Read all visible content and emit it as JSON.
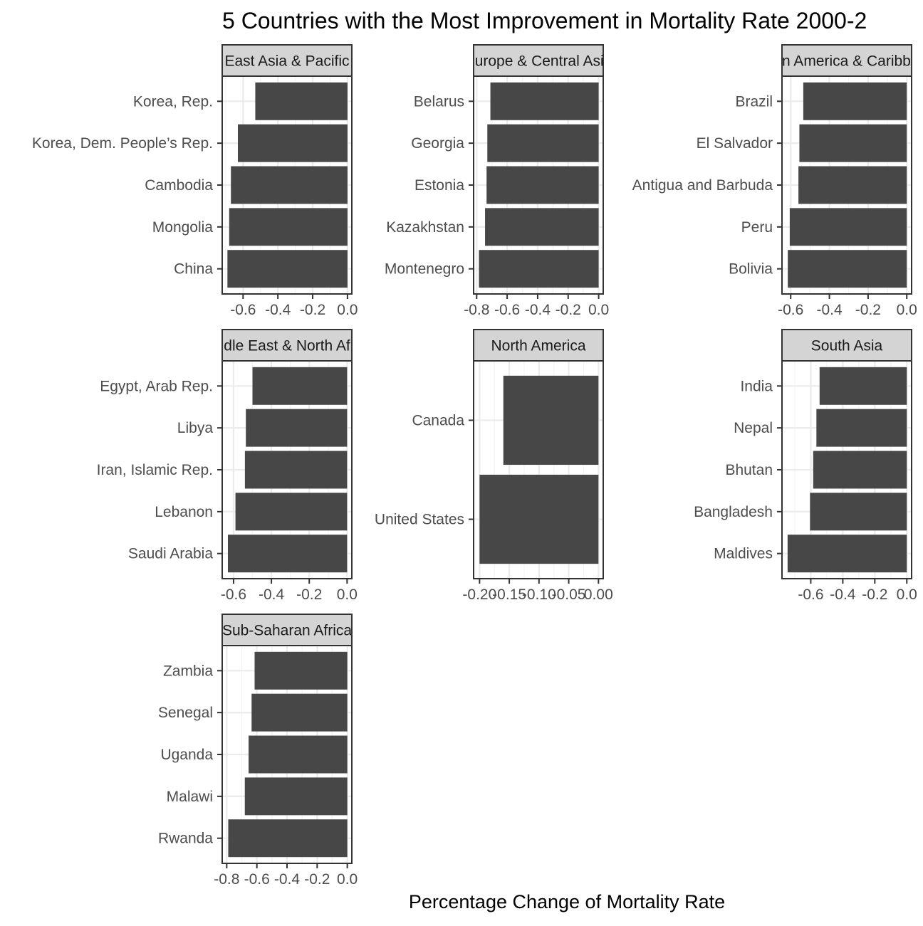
{
  "title": "5 Countries with the Most Improvement in Mortality Rate 2000-2",
  "xlabel": "Percentage Change of Mortality Rate",
  "colors": {
    "bar": "#474747",
    "strip_fill": "#d4d4d4",
    "strip_border": "#333333",
    "panel_border": "#333333",
    "grid_major": "#ebebeb",
    "grid_minor": "#f4f4f4",
    "tick_text": "#4d4d4d",
    "text": "#000000"
  },
  "chart_data": [
    {
      "type": "bar",
      "orientation": "horizontal",
      "strip_label": "East Asia & Pacific",
      "categories": [
        "Korea, Rep.",
        "Korea, Dem. People’s Rep.",
        "Cambodia",
        "Mongolia",
        "China"
      ],
      "values": [
        -0.53,
        -0.63,
        -0.67,
        -0.68,
        -0.69
      ],
      "xlim": [
        -0.72,
        0.025
      ],
      "ticks": [
        -0.6,
        -0.4,
        -0.2,
        0.0
      ],
      "tick_labels": [
        "-0.6",
        "-0.4",
        "-0.2",
        "0.0"
      ]
    },
    {
      "type": "bar",
      "orientation": "horizontal",
      "strip_label": "Europe & Central Asia",
      "categories": [
        "Belarus",
        "Georgia",
        "Estonia",
        "Kazakhstan",
        "Montenegro"
      ],
      "values": [
        -0.71,
        -0.73,
        -0.735,
        -0.745,
        -0.785
      ],
      "xlim": [
        -0.82,
        0.03
      ],
      "ticks": [
        -0.8,
        -0.6,
        -0.4,
        -0.2,
        0.0
      ],
      "tick_labels": [
        "-0.8",
        "-0.6",
        "-0.4",
        "-0.2",
        "0.0"
      ]
    },
    {
      "type": "bar",
      "orientation": "horizontal",
      "strip_label": "Latin America & Caribbean",
      "categories": [
        "Brazil",
        "El Salvador",
        "Antigua and Barbuda",
        "Peru",
        "Bolivia"
      ],
      "values": [
        -0.535,
        -0.555,
        -0.56,
        -0.605,
        -0.615
      ],
      "xlim": [
        -0.645,
        0.025
      ],
      "ticks": [
        -0.6,
        -0.4,
        -0.2,
        0.0
      ],
      "tick_labels": [
        "-0.6",
        "-0.4",
        "-0.2",
        "0.0"
      ]
    },
    {
      "type": "bar",
      "orientation": "horizontal",
      "strip_label": "Middle East & North Africa",
      "categories": [
        "Egypt, Arab Rep.",
        "Libya",
        "Iran, Islamic Rep.",
        "Lebanon",
        "Saudi Arabia"
      ],
      "values": [
        -0.5,
        -0.535,
        -0.54,
        -0.59,
        -0.63
      ],
      "xlim": [
        -0.66,
        0.025
      ],
      "ticks": [
        -0.6,
        -0.4,
        -0.2,
        0.0
      ],
      "tick_labels": [
        "-0.6",
        "-0.4",
        "-0.2",
        "0.0"
      ]
    },
    {
      "type": "bar",
      "orientation": "horizontal",
      "strip_label": "North America",
      "categories": [
        "Canada",
        "United States"
      ],
      "values": [
        -0.16,
        -0.2
      ],
      "xlim": [
        -0.21,
        0.008
      ],
      "ticks": [
        -0.2,
        -0.15,
        -0.1,
        -0.05,
        0.0
      ],
      "tick_labels": [
        "-0.20",
        "-0.15",
        "-0.10",
        "-0.05",
        "0.00"
      ]
    },
    {
      "type": "bar",
      "orientation": "horizontal",
      "strip_label": "South Asia",
      "categories": [
        "India",
        "Nepal",
        "Bhutan",
        "Bangladesh",
        "Maldives"
      ],
      "values": [
        -0.545,
        -0.565,
        -0.585,
        -0.605,
        -0.745
      ],
      "xlim": [
        -0.78,
        0.03
      ],
      "ticks": [
        -0.6,
        -0.4,
        -0.2,
        0.0
      ],
      "tick_labels": [
        "-0.6",
        "-0.4",
        "-0.2",
        "0.0"
      ]
    },
    {
      "type": "bar",
      "orientation": "horizontal",
      "strip_label": "Sub-Saharan Africa",
      "categories": [
        "Zambia",
        "Senegal",
        "Uganda",
        "Malawi",
        "Rwanda"
      ],
      "values": [
        -0.615,
        -0.635,
        -0.655,
        -0.68,
        -0.79
      ],
      "xlim": [
        -0.83,
        0.03
      ],
      "ticks": [
        -0.8,
        -0.6,
        -0.4,
        -0.2,
        0.0
      ],
      "tick_labels": [
        "-0.8",
        "-0.6",
        "-0.4",
        "-0.2",
        "0.0"
      ]
    }
  ]
}
